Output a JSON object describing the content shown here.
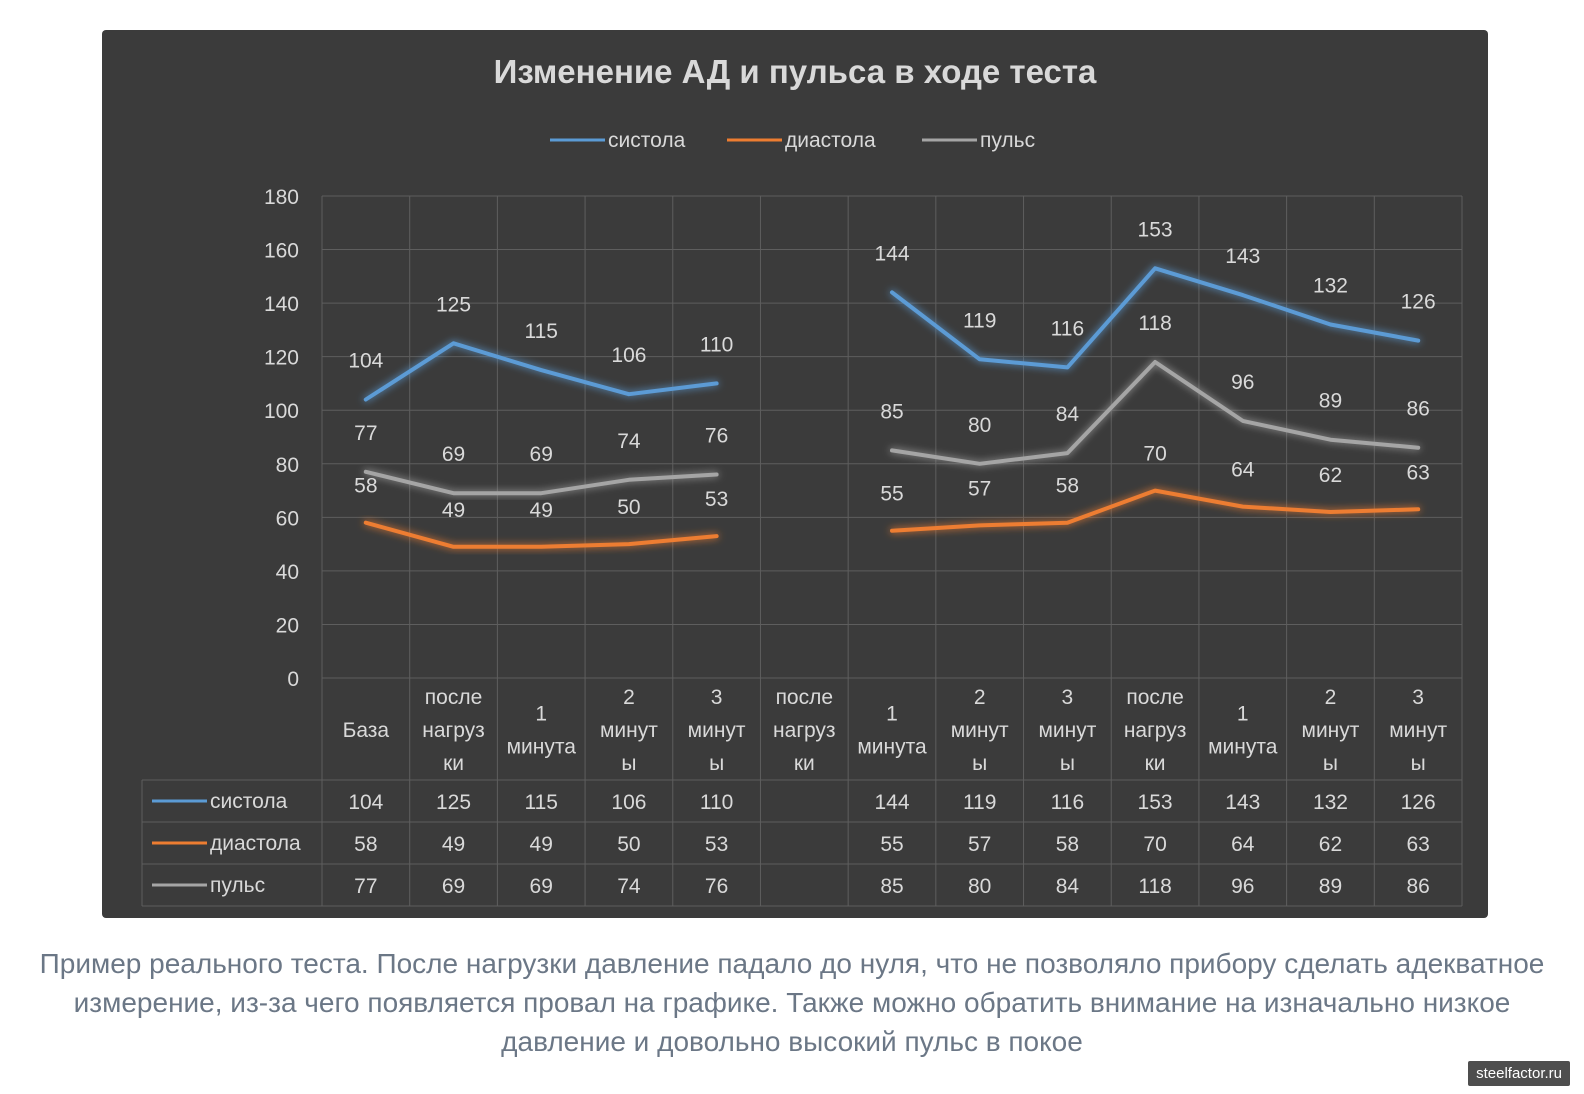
{
  "chart_data": {
    "type": "line",
    "title": "Изменение АД и пульса в ходе теста",
    "legend_position": "top",
    "grid": true,
    "ylim": [
      0,
      180
    ],
    "yticks": [
      0,
      20,
      40,
      60,
      80,
      100,
      120,
      140,
      160,
      180
    ],
    "categories": [
      [
        "База"
      ],
      [
        "после",
        "нагруз",
        "ки"
      ],
      [
        "1",
        "минута"
      ],
      [
        "2",
        "минут",
        "ы"
      ],
      [
        "3",
        "минут",
        "ы"
      ],
      [
        "после",
        "нагруз",
        "ки"
      ],
      [
        "1",
        "минута"
      ],
      [
        "2",
        "минут",
        "ы"
      ],
      [
        "3",
        "минут",
        "ы"
      ],
      [
        "после",
        "нагруз",
        "ки"
      ],
      [
        "1",
        "минута"
      ],
      [
        "2",
        "минут",
        "ы"
      ],
      [
        "3",
        "минут",
        "ы"
      ]
    ],
    "series": [
      {
        "name": "систола",
        "color": "#5b9bd5",
        "values": [
          104,
          125,
          115,
          106,
          110,
          null,
          144,
          119,
          116,
          153,
          143,
          132,
          126
        ]
      },
      {
        "name": "диастола",
        "color": "#ed7d31",
        "values": [
          58,
          49,
          49,
          50,
          53,
          null,
          55,
          57,
          58,
          70,
          64,
          62,
          63
        ]
      },
      {
        "name": "пульс",
        "color": "#a5a5a5",
        "values": [
          77,
          69,
          69,
          74,
          76,
          null,
          85,
          80,
          84,
          118,
          96,
          89,
          86
        ]
      }
    ],
    "data_table": true
  },
  "caption": "Пример реального теста. После нагрузки давление падало до нуля, что не позволяло прибору сделать адекватное измерение, из-за чего появляется провал на графике. Также можно обратить внимание на изначально низкое давление и довольно высокий пульс в покое",
  "watermark": "steelfactor.ru"
}
